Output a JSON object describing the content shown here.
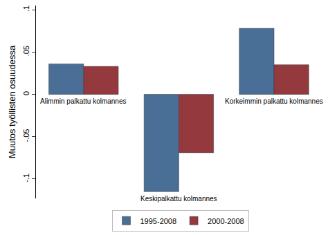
{
  "chart_data": {
    "type": "bar",
    "y_label": "Muutos työllisten osuudessa",
    "categories": [
      "Alimmin palkattu kolmannes",
      "Keskipalkattu kolmannes",
      "Korkeimmin palkattu kolmannes"
    ],
    "series": [
      {
        "name": "1995-2008",
        "color": "#4a6f96",
        "values": [
          0.036,
          -0.115,
          0.078
        ]
      },
      {
        "name": "2000-2008",
        "color": "#943a3f",
        "values": [
          0.033,
          -0.069,
          0.035
        ]
      }
    ],
    "ylim": [
      -0.123,
      0.105
    ],
    "yticks": [
      {
        "value": -0.1,
        "label": "-.1"
      },
      {
        "value": -0.05,
        "label": "-.05"
      },
      0,
      {
        "value": 0.05,
        "label": ".05"
      },
      {
        "value": 0.1,
        "label": ".1"
      }
    ],
    "grid": false,
    "legend": "bottom",
    "tick_labels": "y"
  }
}
